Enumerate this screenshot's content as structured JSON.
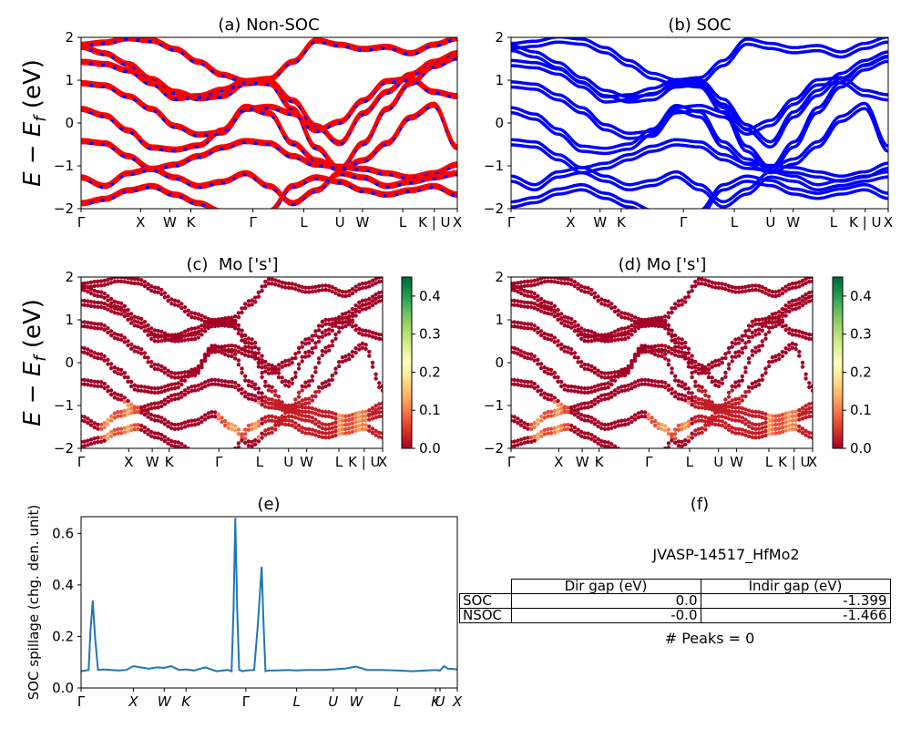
{
  "panels": {
    "a": {
      "title": "(a) Non-SOC"
    },
    "b": {
      "title": "(b) SOC"
    },
    "c": {
      "title": "(c)  Mo ['s']"
    },
    "d": {
      "title": "(d) Mo ['s']"
    },
    "e": {
      "title": "(e)"
    },
    "f": {
      "title": "(f)"
    }
  },
  "ylabel_energy": "E − E",
  "ylabel_energy_sub": "f",
  "ylabel_energy_unit": " (eV)",
  "ylabel_spillage": "SOC spillage (chg. den. unit)",
  "colorbar_ticks": [
    "0.0",
    "0.1",
    "0.2",
    "0.3",
    "0.4"
  ],
  "table": {
    "id_label": "JVASP-14517_HfMo2",
    "headers": [
      "Dir gap (eV)",
      "Indir gap (eV)"
    ],
    "rows": [
      {
        "label": "SOC",
        "dir": "0.0",
        "indir": "-1.399"
      },
      {
        "label": "NSOC",
        "dir": "-0.0",
        "indir": "-1.466"
      }
    ],
    "peaks_text": "# Peaks = 0"
  },
  "colors": {
    "nonsoc_line": "#ff0000",
    "soc_line": "#0000ff",
    "spillage_line": "#1f77b4",
    "colormap": "RdYlGn"
  },
  "chart_data": [
    {
      "panel": "a",
      "type": "line",
      "title": "(a) Non-SOC",
      "ylabel": "E − E_f (eV)",
      "ylim": [
        -2,
        2
      ],
      "yticks": [
        "−2",
        "−1",
        "0",
        "1",
        "2"
      ],
      "xticks": [
        "Γ",
        "X",
        "W",
        "K",
        "Γ",
        "L",
        "U",
        "W",
        "L",
        "K | U",
        "X"
      ],
      "xtick_pos": [
        0,
        0.158,
        0.236,
        0.292,
        0.457,
        0.592,
        0.688,
        0.748,
        0.855,
        0.939,
        1.0
      ],
      "series_style": "red dashed over blue",
      "bands": [
        [
          1.8,
          1.85,
          1.95,
          1.9,
          1.7,
          1.4,
          1.1,
          0.95,
          1.0,
          1.4,
          1.9,
          1.8,
          1.7,
          1.75,
          1.6,
          1.8,
          1.95
        ],
        [
          1.75,
          1.6,
          1.35,
          1.0,
          0.7,
          0.55,
          0.6,
          0.9,
          0.95,
          0.5,
          -0.1,
          -0.5,
          0.2,
          0.7,
          1.1,
          1.4,
          1.6
        ],
        [
          1.4,
          1.35,
          1.2,
          0.9,
          0.55,
          0.6,
          0.75,
          0.95,
          0.9,
          0.3,
          -0.6,
          -1.1,
          -0.5,
          0.3,
          0.9,
          1.3,
          1.5
        ],
        [
          0.9,
          0.85,
          0.6,
          0.3,
          -0.1,
          -0.3,
          -0.25,
          0.3,
          0.35,
          0.2,
          -0.2,
          0.0,
          0.5,
          0.95,
          1.0,
          0.7,
          0.6
        ],
        [
          0.3,
          0.15,
          -0.2,
          -0.6,
          -0.65,
          -0.55,
          -0.2,
          0.35,
          0.2,
          -0.5,
          -0.9,
          -1.1,
          -0.9,
          -0.5,
          0.1,
          0.4,
          -0.6
        ],
        [
          -0.45,
          -0.5,
          -0.8,
          -1.1,
          -1.0,
          -0.8,
          -0.6,
          -0.45,
          -0.5,
          -0.8,
          -1.0,
          -1.05,
          -1.1,
          -1.2,
          -1.3,
          -1.2,
          -1.0
        ],
        [
          -1.3,
          -1.5,
          -1.2,
          -1.1,
          -1.3,
          -1.5,
          -1.4,
          -1.2,
          -1.5,
          -1.9,
          -1.6,
          -1.2,
          -1.3,
          -1.5,
          -1.4,
          -1.3,
          -1.2
        ],
        [
          -1.9,
          -1.8,
          -1.6,
          -1.5,
          -1.7,
          -1.9,
          -2.1,
          -2.2,
          -2.1,
          -1.5,
          -1.3,
          -1.4,
          -1.6,
          -1.7,
          -1.6,
          -1.5,
          -1.7
        ]
      ]
    },
    {
      "panel": "b",
      "type": "line",
      "title": "(b) SOC",
      "ylim": [
        -2,
        2
      ],
      "yticks": [
        "−2",
        "−1",
        "0",
        "1",
        "2"
      ],
      "xticks": [
        "Γ",
        "X",
        "W",
        "K",
        "Γ",
        "L",
        "U",
        "W",
        "L",
        "K | U",
        "X"
      ],
      "series_style": "blue solid, spin-orbit split pairs"
    },
    {
      "panel": "c",
      "type": "scatter",
      "title": "(c)  Mo ['s']",
      "ylabel": "E − E_f (eV)",
      "ylim": [
        -2,
        2
      ],
      "yticks": [
        "−2",
        "−1",
        "0",
        "1",
        "2"
      ],
      "xticks": [
        "Γ",
        "X",
        "W",
        "K",
        "Γ",
        "L",
        "U",
        "W",
        "L",
        "K | U",
        "X"
      ],
      "colorbar": {
        "cmap": "RdYlGn",
        "range": [
          0.0,
          0.45
        ],
        "ticks": [
          "0.0",
          "0.1",
          "0.2",
          "0.3",
          "0.4"
        ]
      },
      "color_value": "Mo s-orbital weight; mostly ~0, up to ~0.15 near −1.2 eV between X and Γ"
    },
    {
      "panel": "d",
      "type": "scatter",
      "title": "(d) Mo ['s']",
      "ylim": [
        -2,
        2
      ],
      "yticks": [
        "−2",
        "−1",
        "0",
        "1",
        "2"
      ],
      "xticks": [
        "Γ",
        "X",
        "W",
        "K",
        "Γ",
        "L",
        "U",
        "W",
        "L",
        "K | U",
        "X"
      ],
      "colorbar": {
        "cmap": "RdYlGn",
        "range": [
          0.0,
          0.45
        ],
        "ticks": [
          "0.0",
          "0.1",
          "0.2",
          "0.3",
          "0.4"
        ]
      }
    },
    {
      "panel": "e",
      "type": "line",
      "title": "(e)",
      "ylabel": "SOC spillage (chg. den. unit)",
      "ylim": [
        0.0,
        0.665
      ],
      "yticks": [
        "0.0",
        "0.2",
        "0.4",
        "0.6"
      ],
      "xticks": [
        "Γ",
        "X",
        "W",
        "K",
        "Γ",
        "L",
        "U",
        "W",
        "L",
        "K",
        "U",
        "X"
      ],
      "xtick_pos": [
        0,
        0.139,
        0.221,
        0.279,
        0.438,
        0.573,
        0.67,
        0.731,
        0.841,
        0.942,
        0.954,
        1.0
      ],
      "x": [
        0,
        0.02,
        0.025,
        0.031,
        0.037,
        0.045,
        0.06,
        0.08,
        0.1,
        0.12,
        0.139,
        0.18,
        0.2,
        0.221,
        0.24,
        0.26,
        0.279,
        0.3,
        0.33,
        0.36,
        0.39,
        0.4,
        0.405,
        0.41,
        0.415,
        0.42,
        0.43,
        0.438,
        0.46,
        0.47,
        0.48,
        0.485,
        0.49,
        0.5,
        0.52,
        0.55,
        0.573,
        0.6,
        0.64,
        0.67,
        0.7,
        0.731,
        0.76,
        0.8,
        0.841,
        0.88,
        0.92,
        0.942,
        0.954,
        0.965,
        0.975,
        1.0
      ],
      "y": [
        0.065,
        0.07,
        0.22,
        0.34,
        0.2,
        0.07,
        0.072,
        0.07,
        0.068,
        0.07,
        0.085,
        0.075,
        0.08,
        0.078,
        0.085,
        0.07,
        0.072,
        0.068,
        0.08,
        0.065,
        0.07,
        0.065,
        0.3,
        0.66,
        0.3,
        0.07,
        0.065,
        0.068,
        0.07,
        0.25,
        0.47,
        0.25,
        0.065,
        0.068,
        0.068,
        0.07,
        0.068,
        0.07,
        0.07,
        0.072,
        0.075,
        0.083,
        0.07,
        0.07,
        0.068,
        0.065,
        0.068,
        0.07,
        0.068,
        0.085,
        0.075,
        0.072
      ]
    }
  ]
}
